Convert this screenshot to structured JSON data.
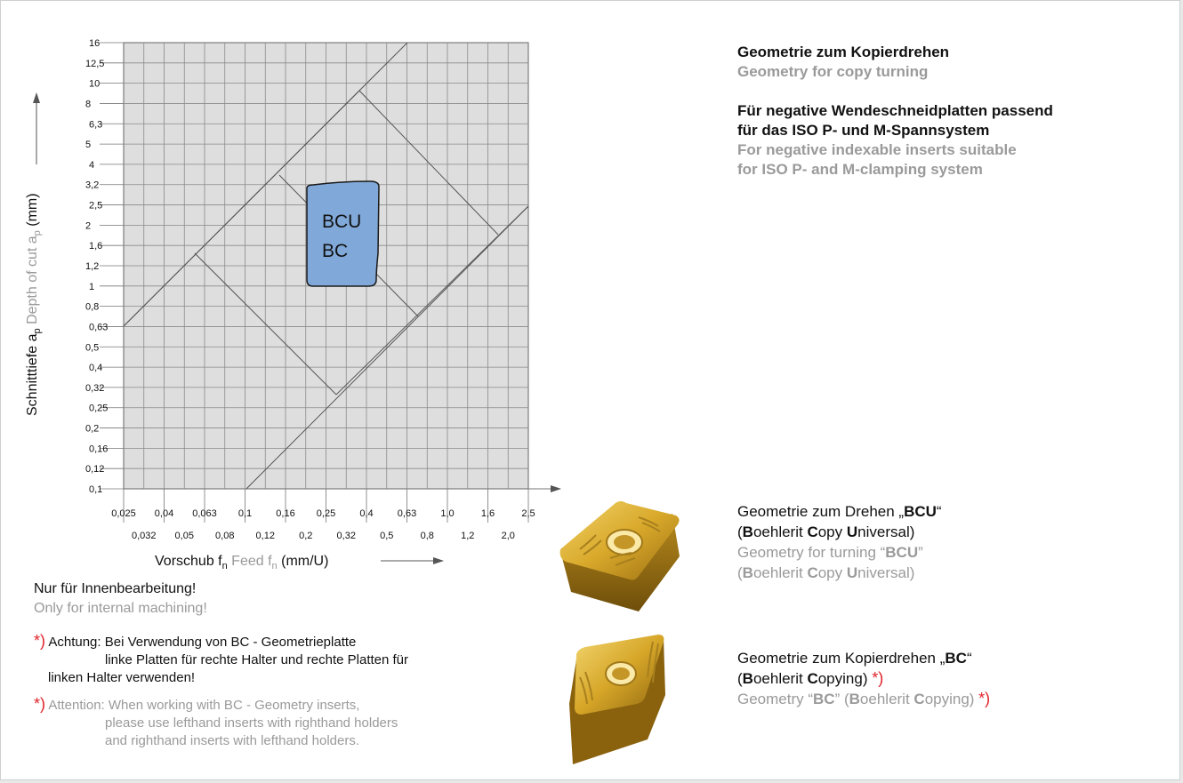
{
  "right": {
    "title_de": "Geometrie zum Kopierdrehen",
    "title_en": "Geometry for copy turning",
    "sub_de_1": "Für negative Wendeschneidplatten passend",
    "sub_de_2": "für das ISO P- und M-Spannsystem",
    "sub_en_1": "For negative indexable inserts suitable",
    "sub_en_2": "for ISO P- and M-clamping system"
  },
  "bcu": {
    "de_prefix": "Geometrie zum Drehen „",
    "code": "BCU",
    "de_suffix": "“",
    "paren_open": "(",
    "b": "B",
    "b_rest": "oehlerit ",
    "c": "C",
    "c_rest": "opy ",
    "u": "U",
    "u_rest": "niversal)",
    "en_prefix": "Geometry for turning “",
    "en_suffix": "”"
  },
  "bc": {
    "de_prefix": "Geometrie zum Kopierdrehen „",
    "code": "BC",
    "de_suffix": "“",
    "b": "B",
    "b_rest": "oehlerit ",
    "c": "C",
    "c_rest": "opying) ",
    "star": "*)",
    "en_prefix": "Geometry “",
    "en_mid": "” (",
    "en_c_rest": "opying) "
  },
  "notes": {
    "internal_de": "Nur für Innenbearbeitung!",
    "internal_en": "Only for internal machining!",
    "star": "*)",
    "att_de_1": "Achtung: Bei Verwendung von BC - Geometrieplatte",
    "att_de_2": "linke Platten für rechte Halter und rechte Platten für",
    "att_de_3": "linken Halter verwenden!",
    "att_en_1": "Attention: When working with BC - Geometry inserts,",
    "att_en_2": "please use lefthand inserts with righthand holders",
    "att_en_3": "and righthand inserts with lefthand holders."
  },
  "chart_data": {
    "type": "area",
    "x_scale": "log",
    "y_scale": "log",
    "x_ticks_row1": [
      "0,025",
      "0,04",
      "0,063",
      "0,1",
      "0,16",
      "0,25",
      "0,4",
      "0,63",
      "1,0",
      "1,6",
      "2,5"
    ],
    "x_ticks_row2": [
      "0,032",
      "0,05",
      "0,08",
      "0,12",
      "0,2",
      "0,32",
      "0,5",
      "0,8",
      "1,2",
      "2,0"
    ],
    "y_ticks": [
      "16",
      "12,5",
      "10",
      "8",
      "6,3",
      "5",
      "4",
      "3,2",
      "2,5",
      "2",
      "1,6",
      "1,2",
      "1",
      "0,8",
      "0,63",
      "0,5",
      "0,4",
      "0,32",
      "0,25",
      "0,2",
      "0,16",
      "0,12",
      "0,1"
    ],
    "xlabel_de": "Vorschub f",
    "xlabel_sub": "n",
    "xlabel_en": " Feed f",
    "xlabel_unit": " (mm/U)",
    "ylabel_de": "Schnitttiefe a",
    "ylabel_sub": "p",
    "ylabel_en": " Depth of cut a",
    "ylabel_unit": " (mm)",
    "region_labels": [
      "BCU",
      "BC"
    ],
    "region": {
      "x_range": [
        0.2,
        0.63
      ],
      "y_range": [
        1.0,
        3.4
      ]
    },
    "colors": {
      "region_fill": "#80a9d9",
      "grid_fill": "#dedede"
    }
  }
}
